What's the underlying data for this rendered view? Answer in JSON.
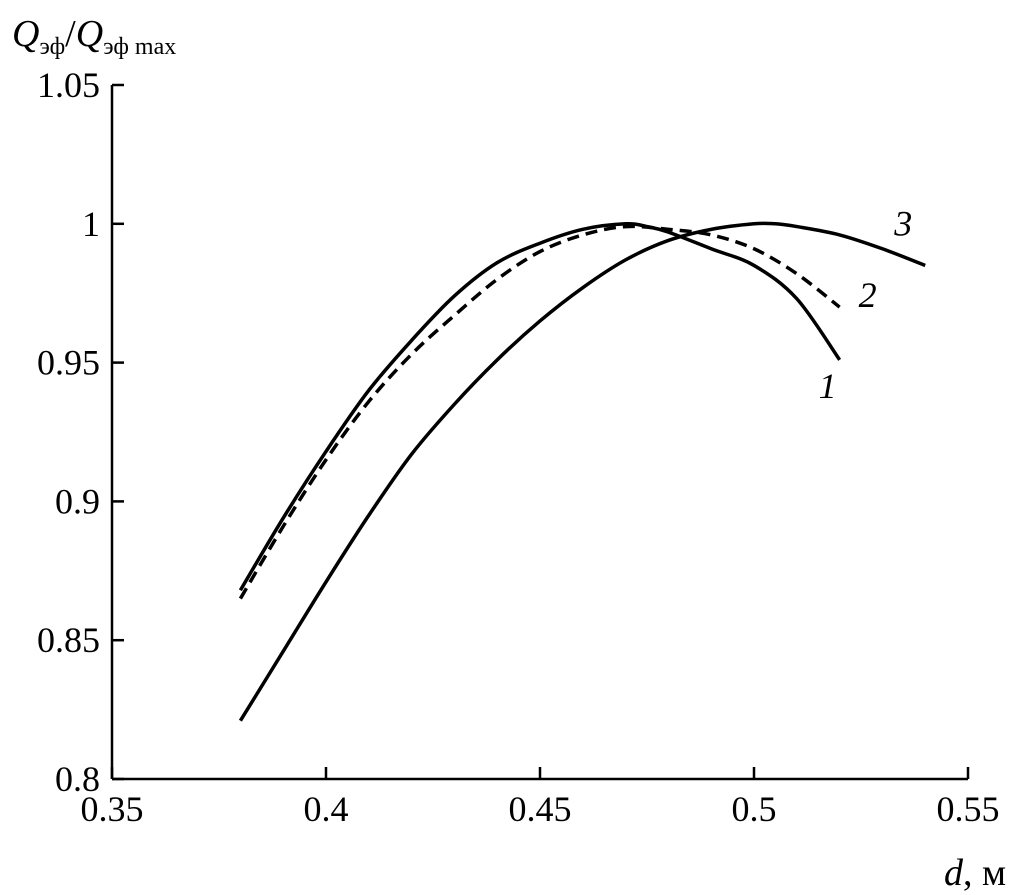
{
  "chart_data": {
    "type": "line",
    "title": "",
    "xlabel": {
      "var": "d",
      "unit": ", м"
    },
    "ylabel": {
      "num": "Q",
      "num_sub": "эф",
      "slash": "/",
      "den": "Q",
      "den_sub": "эф max"
    },
    "xlim": [
      0.35,
      0.55
    ],
    "ylim": [
      0.8,
      1.05
    ],
    "xticks": [
      0.35,
      0.4,
      0.45,
      0.5,
      0.55
    ],
    "yticks": [
      0.8,
      0.85,
      0.9,
      0.95,
      1,
      1.05
    ],
    "xtick_labels": [
      "0.35",
      "0.4",
      "0.45",
      "0.5",
      "0.55"
    ],
    "ytick_labels": [
      "0.8",
      "0.85",
      "0.9",
      "0.95",
      "1",
      "1.05"
    ],
    "grid": false,
    "series": [
      {
        "name": "1",
        "style": "solid",
        "x": [
          0.38,
          0.39,
          0.4,
          0.41,
          0.42,
          0.43,
          0.44,
          0.45,
          0.46,
          0.47,
          0.475,
          0.48,
          0.49,
          0.5,
          0.51,
          0.52
        ],
        "y": [
          0.868,
          0.894,
          0.918,
          0.94,
          0.958,
          0.974,
          0.986,
          0.993,
          0.998,
          1.0,
          0.999,
          0.997,
          0.991,
          0.985,
          0.973,
          0.951
        ]
      },
      {
        "name": "2",
        "style": "dashed",
        "x": [
          0.38,
          0.39,
          0.4,
          0.41,
          0.42,
          0.43,
          0.44,
          0.45,
          0.46,
          0.47,
          0.48,
          0.49,
          0.5,
          0.51,
          0.52
        ],
        "y": [
          0.865,
          0.891,
          0.915,
          0.936,
          0.953,
          0.967,
          0.98,
          0.99,
          0.996,
          0.999,
          0.998,
          0.996,
          0.991,
          0.982,
          0.97
        ]
      },
      {
        "name": "3",
        "style": "solid",
        "x": [
          0.38,
          0.39,
          0.4,
          0.41,
          0.42,
          0.43,
          0.44,
          0.45,
          0.46,
          0.47,
          0.48,
          0.49,
          0.5,
          0.505,
          0.51,
          0.52,
          0.53,
          0.54
        ],
        "y": [
          0.821,
          0.846,
          0.871,
          0.895,
          0.917,
          0.935,
          0.951,
          0.965,
          0.977,
          0.987,
          0.994,
          0.998,
          1.0,
          1.0,
          0.999,
          0.996,
          0.991,
          0.985
        ]
      }
    ]
  }
}
